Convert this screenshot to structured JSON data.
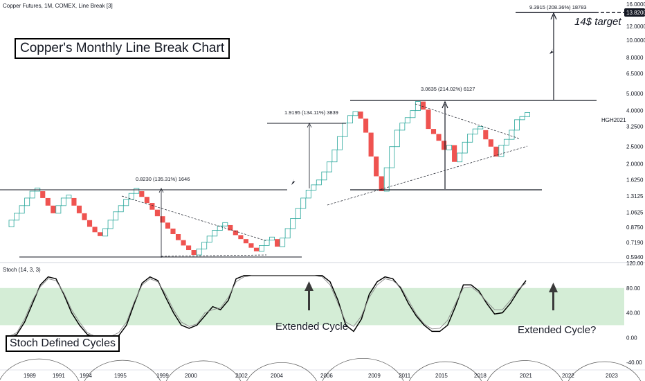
{
  "header": {
    "symbol_info": "Copper Futures, 1M, COMEX, Line Break [3]",
    "stoch_info": "Stoch (14, 3, 3)"
  },
  "labels": {
    "title": "Copper's Monthly Line Break Chart",
    "cycles": "Stoch Defined Cycles",
    "extended_cycle": "Extended Cycle",
    "extended_cycle_q": "Extended Cycle?",
    "target": "14$ target",
    "hg_tag": "HGH2021"
  },
  "colors": {
    "up_outline": "#26a69a",
    "down_fill": "#ef5350",
    "band": "#d4edd6",
    "price_tag_bg": "#131722"
  },
  "chart_data": [
    {
      "type": "line-break",
      "title": "Copper's Monthly Line Break Chart",
      "y_scale": "log",
      "ylim": [
        0.594,
        16.0
      ],
      "price_ticks": [
        "16.0000",
        "13.8200",
        "12.0000",
        "10.0000",
        "8.0000",
        "6.5000",
        "5.0000",
        "4.0000",
        "3.2500",
        "2.5000",
        "2.0000",
        "1.6250",
        "1.3125",
        "1.0625",
        "0.8750",
        "0.7190",
        "0.5940"
      ],
      "last_price": "13.8200",
      "x_ticks": [
        "1989",
        "1991",
        "1994",
        "1995",
        "1999",
        "2000",
        "2002",
        "2004",
        "2006",
        "2009",
        "2011",
        "2015",
        "2018",
        "2021",
        "2022",
        "2023"
      ],
      "bricks": [
        [
          0.88,
          0.96,
          "up"
        ],
        [
          0.96,
          1.05,
          "up"
        ],
        [
          1.05,
          1.16,
          "up"
        ],
        [
          1.16,
          1.28,
          "up"
        ],
        [
          1.28,
          1.4,
          "up"
        ],
        [
          1.4,
          1.46,
          "up"
        ],
        [
          1.4,
          1.28,
          "down"
        ],
        [
          1.28,
          1.16,
          "down"
        ],
        [
          1.16,
          1.05,
          "down"
        ],
        [
          1.05,
          1.16,
          "up"
        ],
        [
          1.16,
          1.28,
          "up"
        ],
        [
          1.28,
          1.33,
          "up"
        ],
        [
          1.28,
          1.16,
          "down"
        ],
        [
          1.16,
          1.05,
          "down"
        ],
        [
          1.05,
          0.96,
          "down"
        ],
        [
          0.96,
          0.88,
          "down"
        ],
        [
          0.88,
          0.82,
          "down"
        ],
        [
          0.82,
          0.78,
          "down"
        ],
        [
          0.78,
          0.86,
          "up"
        ],
        [
          0.86,
          0.96,
          "up"
        ],
        [
          0.96,
          1.07,
          "up"
        ],
        [
          1.07,
          1.16,
          "up"
        ],
        [
          1.16,
          1.26,
          "up"
        ],
        [
          1.26,
          1.36,
          "up"
        ],
        [
          1.36,
          1.45,
          "up"
        ],
        [
          1.4,
          1.3,
          "down"
        ],
        [
          1.3,
          1.2,
          "down"
        ],
        [
          1.2,
          1.1,
          "down"
        ],
        [
          1.1,
          1.01,
          "down"
        ],
        [
          1.01,
          0.93,
          "down"
        ],
        [
          0.93,
          0.86,
          "down"
        ],
        [
          0.86,
          0.8,
          "down"
        ],
        [
          0.8,
          0.74,
          "down"
        ],
        [
          0.74,
          0.69,
          "down"
        ],
        [
          0.69,
          0.65,
          "down"
        ],
        [
          0.65,
          0.61,
          "down"
        ],
        [
          0.61,
          0.66,
          "up"
        ],
        [
          0.66,
          0.72,
          "up"
        ],
        [
          0.72,
          0.78,
          "up"
        ],
        [
          0.78,
          0.84,
          "up"
        ],
        [
          0.84,
          0.89,
          "up"
        ],
        [
          0.89,
          0.93,
          "up"
        ],
        [
          0.9,
          0.84,
          "down"
        ],
        [
          0.84,
          0.79,
          "down"
        ],
        [
          0.79,
          0.75,
          "down"
        ],
        [
          0.75,
          0.71,
          "down"
        ],
        [
          0.71,
          0.67,
          "down"
        ],
        [
          0.67,
          0.64,
          "down"
        ],
        [
          0.64,
          0.69,
          "up"
        ],
        [
          0.69,
          0.74,
          "up"
        ],
        [
          0.74,
          0.77,
          "up"
        ],
        [
          0.75,
          0.68,
          "down"
        ],
        [
          0.68,
          0.76,
          "up"
        ],
        [
          0.76,
          0.86,
          "up"
        ],
        [
          0.86,
          0.98,
          "up"
        ],
        [
          0.98,
          1.12,
          "up"
        ],
        [
          1.12,
          1.28,
          "up"
        ],
        [
          1.28,
          1.42,
          "up"
        ],
        [
          1.42,
          1.52,
          "up"
        ],
        [
          1.52,
          1.62,
          "up"
        ],
        [
          1.62,
          1.8,
          "up"
        ],
        [
          1.8,
          2.05,
          "up"
        ],
        [
          2.05,
          2.4,
          "up"
        ],
        [
          2.4,
          2.85,
          "up"
        ],
        [
          2.85,
          3.4,
          "up"
        ],
        [
          3.4,
          3.75,
          "up"
        ],
        [
          3.75,
          3.95,
          "up"
        ],
        [
          3.95,
          3.6,
          "down"
        ],
        [
          3.6,
          3.0,
          "down"
        ],
        [
          3.0,
          2.2,
          "down"
        ],
        [
          2.2,
          1.7,
          "down"
        ],
        [
          1.7,
          1.4,
          "down"
        ],
        [
          1.4,
          1.9,
          "up"
        ],
        [
          1.9,
          2.5,
          "up"
        ],
        [
          2.5,
          3.1,
          "up"
        ],
        [
          3.1,
          3.4,
          "up"
        ],
        [
          3.4,
          3.65,
          "up"
        ],
        [
          3.65,
          4.0,
          "up"
        ],
        [
          4.0,
          4.5,
          "up"
        ],
        [
          4.5,
          4.05,
          "down"
        ],
        [
          4.05,
          3.15,
          "down"
        ],
        [
          3.15,
          2.95,
          "down"
        ],
        [
          2.95,
          2.7,
          "down"
        ],
        [
          2.7,
          2.4,
          "down"
        ],
        [
          2.4,
          2.55,
          "up"
        ],
        [
          2.55,
          2.05,
          "down"
        ],
        [
          2.05,
          2.3,
          "up"
        ],
        [
          2.3,
          2.65,
          "up"
        ],
        [
          2.65,
          2.95,
          "up"
        ],
        [
          2.95,
          3.15,
          "up"
        ],
        [
          3.15,
          3.25,
          "up"
        ],
        [
          3.1,
          2.75,
          "down"
        ],
        [
          2.75,
          2.5,
          "down"
        ],
        [
          2.5,
          2.2,
          "down"
        ],
        [
          2.2,
          2.55,
          "up"
        ],
        [
          2.55,
          2.75,
          "up"
        ],
        [
          2.75,
          3.1,
          "up"
        ],
        [
          3.1,
          3.55,
          "up"
        ],
        [
          3.55,
          3.7,
          "up"
        ],
        [
          3.7,
          3.9,
          "up"
        ]
      ],
      "annotations": [
        "0.8230 (135.31%) 1646",
        "1.9195 (134.11%) 3839",
        "3.0635 (214.02%) 6127",
        "9.3915 (208.36%) 18783"
      ]
    },
    {
      "type": "line",
      "title": "Stoch (14, 3, 3)",
      "ylim": [
        -50,
        120
      ],
      "y_ticks": [
        "120.00",
        "80.00",
        "40.00",
        "0.00",
        "-40.00"
      ],
      "band": [
        20,
        80
      ],
      "series": [
        {
          "values": [
            0,
            5,
            25,
            55,
            85,
            98,
            95,
            70,
            40,
            20,
            5,
            0,
            0,
            0,
            3,
            20,
            55,
            88,
            98,
            92,
            65,
            40,
            20,
            15,
            20,
            35,
            50,
            45,
            60,
            95,
            100,
            100,
            100,
            100,
            100,
            100,
            100,
            100,
            100,
            100,
            100,
            90,
            60,
            20,
            10,
            30,
            70,
            90,
            98,
            95,
            80,
            55,
            35,
            20,
            10,
            10,
            20,
            50,
            85,
            85,
            75,
            55,
            38,
            40,
            55,
            75,
            92
          ]
        },
        {
          "values": [
            2,
            8,
            30,
            60,
            82,
            95,
            92,
            72,
            45,
            25,
            8,
            2,
            0,
            2,
            8,
            25,
            58,
            85,
            95,
            90,
            70,
            45,
            25,
            18,
            22,
            40,
            45,
            48,
            65,
            90,
            98,
            100,
            100,
            100,
            100,
            100,
            100,
            100,
            100,
            100,
            98,
            85,
            55,
            25,
            18,
            35,
            65,
            85,
            95,
            92,
            82,
            60,
            38,
            22,
            14,
            15,
            28,
            55,
            80,
            82,
            72,
            58,
            45,
            45,
            60,
            78,
            88
          ]
        }
      ]
    }
  ]
}
